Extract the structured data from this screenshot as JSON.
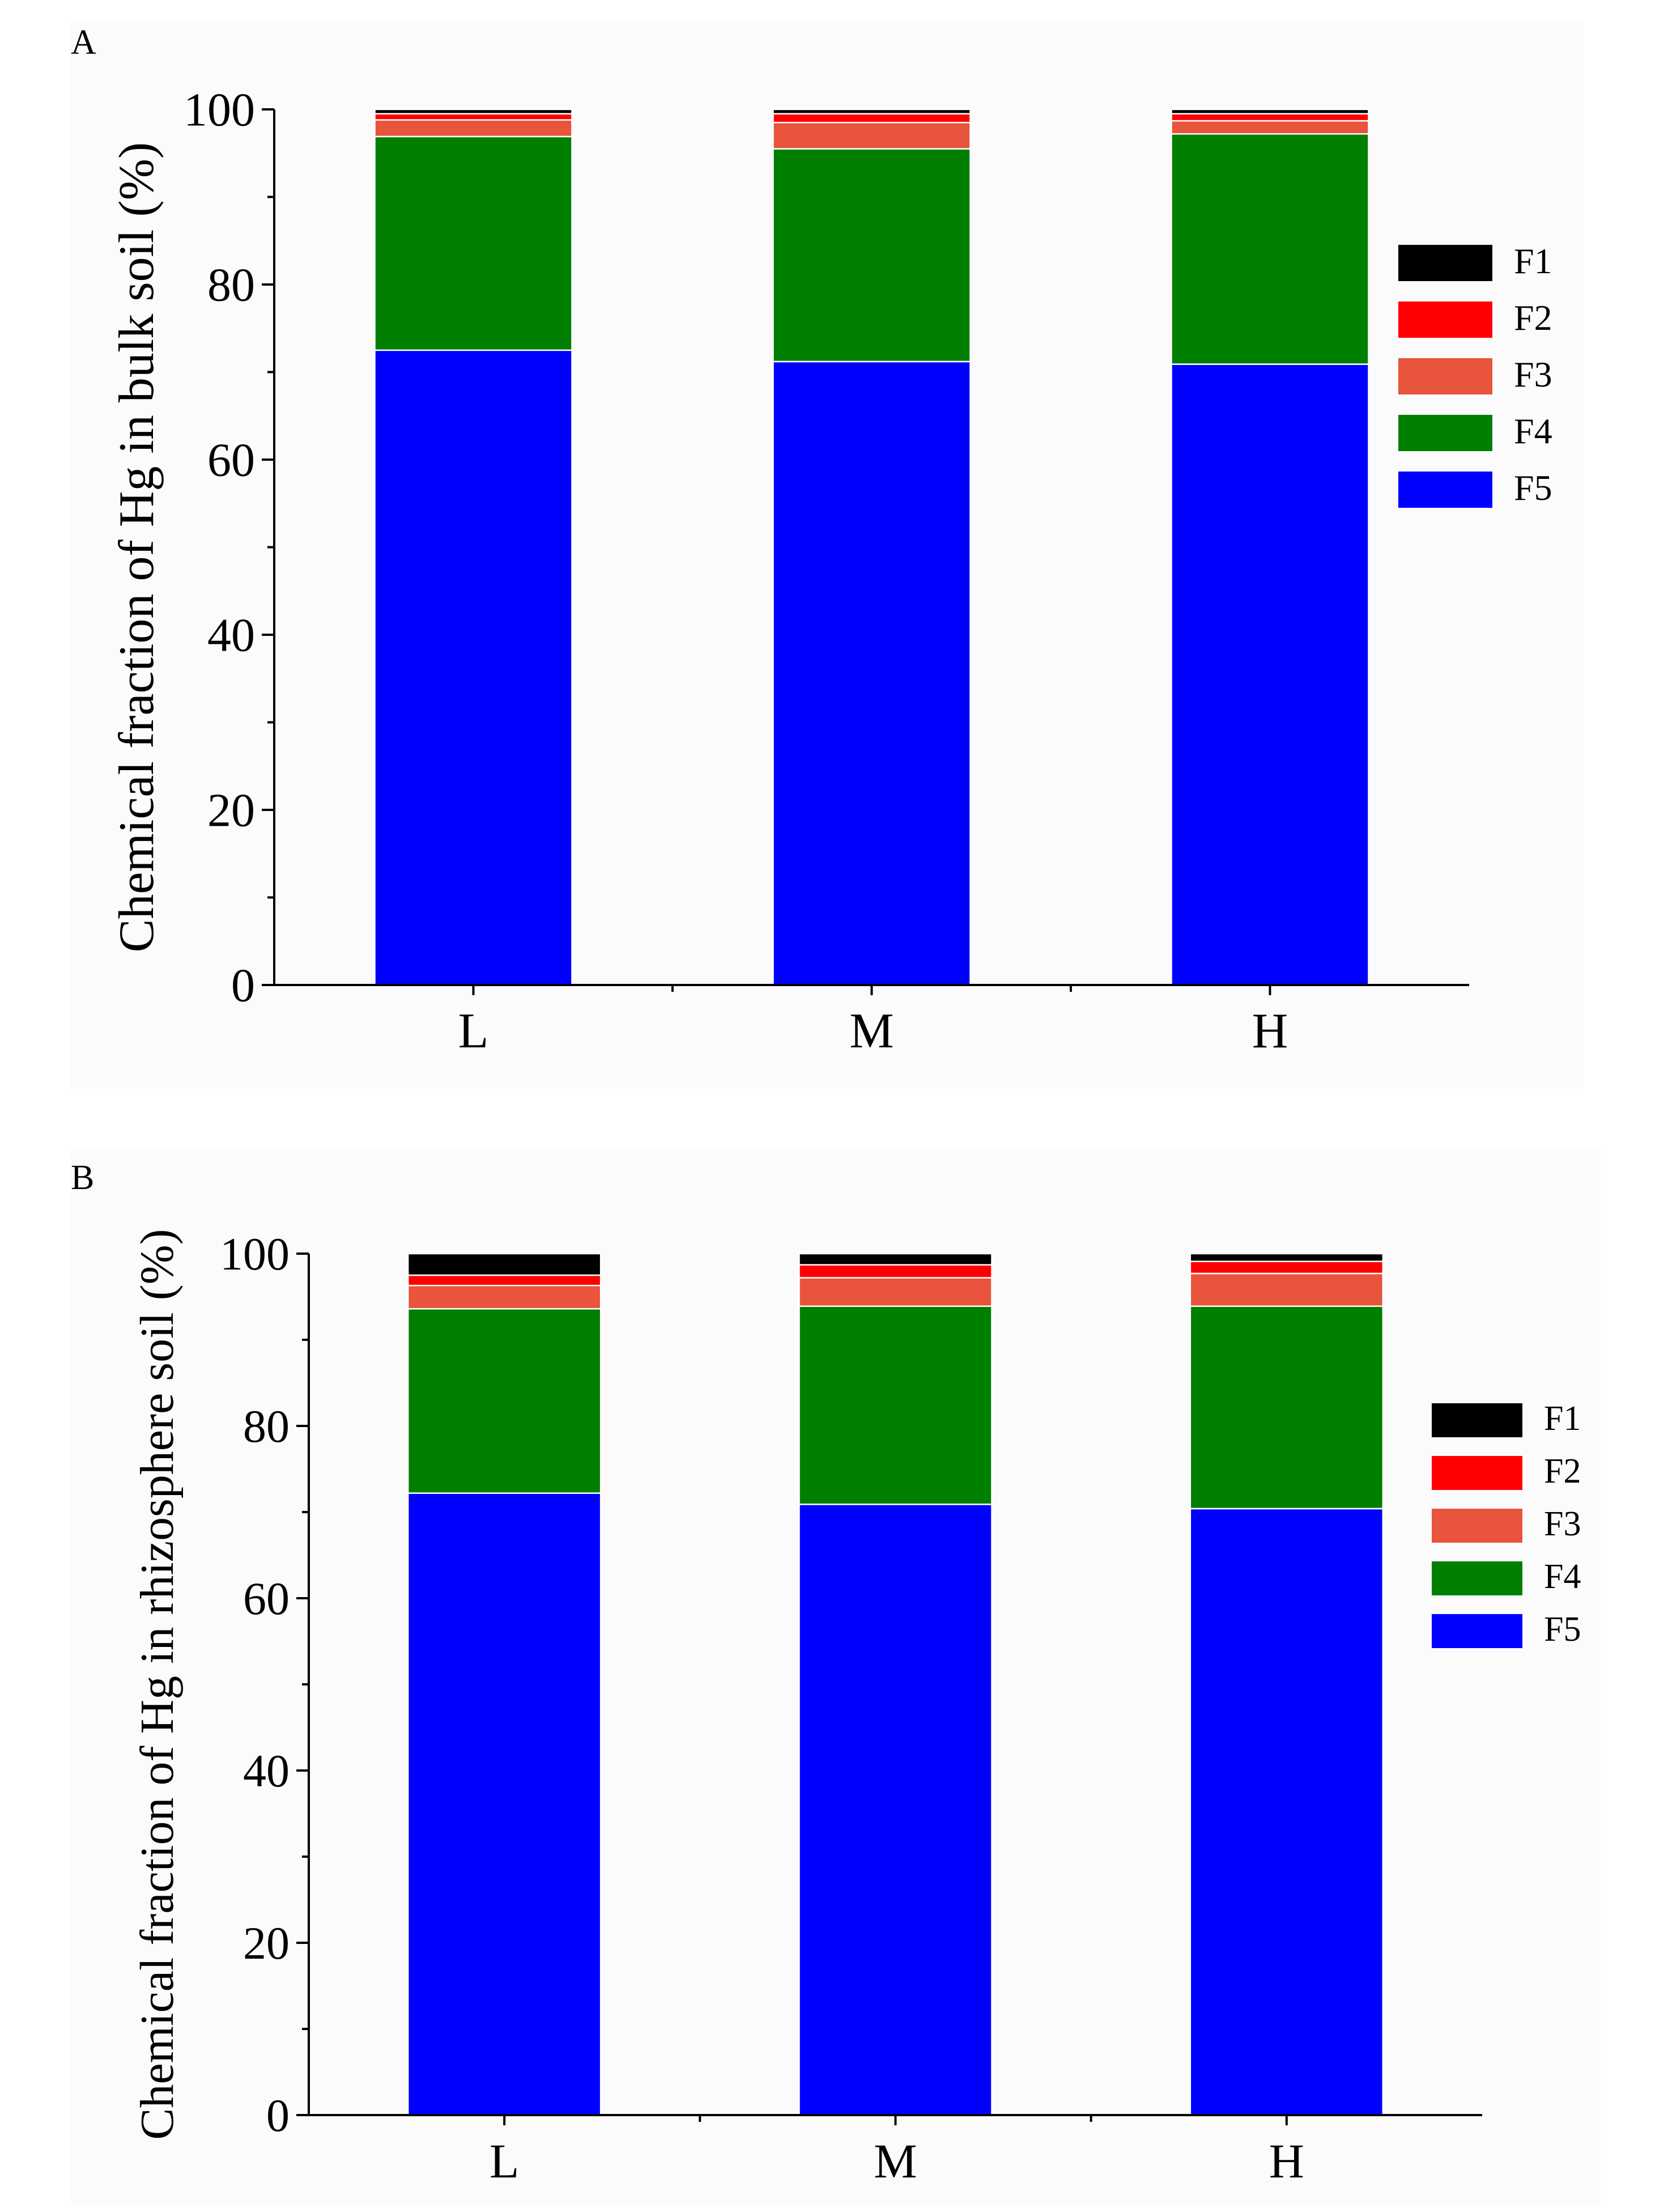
{
  "chart_data": [
    {
      "type": "bar",
      "stacked": true,
      "panel_label": "A",
      "title": "",
      "xlabel": "",
      "ylabel": "Chemical fraction of Hg in bulk soil (%)",
      "ylim": [
        0,
        100
      ],
      "yticks": [
        0,
        20,
        40,
        60,
        80,
        100
      ],
      "categories": [
        "L",
        "M",
        "H"
      ],
      "legend_position": "right",
      "series": [
        {
          "name": "F5",
          "color": "#0000ff",
          "values": [
            72.5,
            71.2,
            70.9
          ]
        },
        {
          "name": "F4",
          "color": "#007f00",
          "values": [
            24.4,
            24.3,
            26.3
          ]
        },
        {
          "name": "F3",
          "color": "#e8543c",
          "values": [
            1.9,
            3.0,
            1.5
          ]
        },
        {
          "name": "F2",
          "color": "#ff0000",
          "values": [
            0.7,
            1.0,
            0.8
          ]
        },
        {
          "name": "F1",
          "color": "#000000",
          "values": [
            0.5,
            0.5,
            0.5
          ]
        }
      ]
    },
    {
      "type": "bar",
      "stacked": true,
      "panel_label": "B",
      "title": "",
      "xlabel": "",
      "ylabel": "Chemical fraction of Hg in rhizosphere soil (%)",
      "ylim": [
        0,
        100
      ],
      "yticks": [
        0,
        20,
        40,
        60,
        80,
        100
      ],
      "categories": [
        "L",
        "M",
        "H"
      ],
      "legend_position": "right",
      "series": [
        {
          "name": "F5",
          "color": "#0000ff",
          "values": [
            72.2,
            70.9,
            70.4
          ]
        },
        {
          "name": "F4",
          "color": "#007f00",
          "values": [
            21.4,
            23.0,
            23.5
          ]
        },
        {
          "name": "F3",
          "color": "#e8543c",
          "values": [
            2.7,
            3.3,
            3.8
          ]
        },
        {
          "name": "F2",
          "color": "#ff0000",
          "values": [
            1.2,
            1.5,
            1.4
          ]
        },
        {
          "name": "F1",
          "color": "#000000",
          "values": [
            2.5,
            1.3,
            0.9
          ]
        }
      ]
    }
  ]
}
